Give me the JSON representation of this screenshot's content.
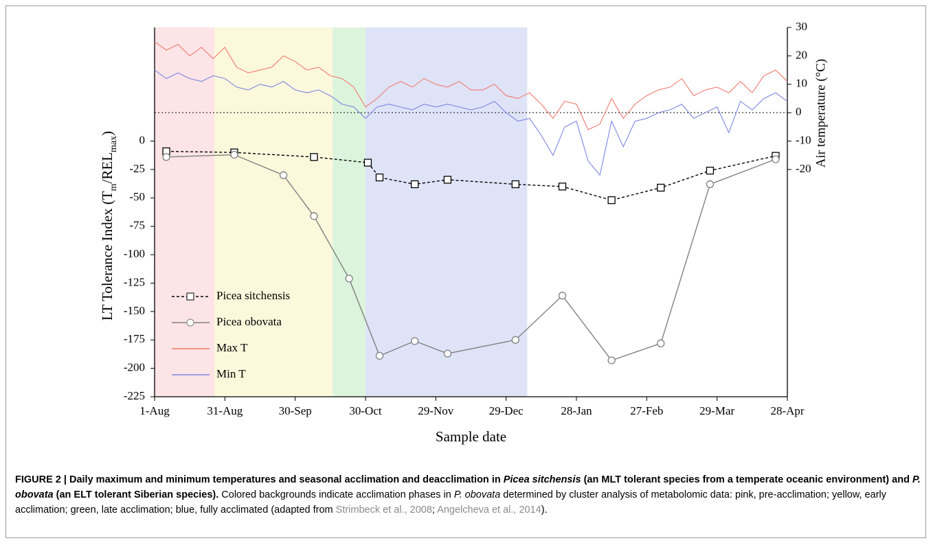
{
  "chart_data": {
    "type": "line",
    "xlabel": "Sample date",
    "ylabel_parts": [
      {
        "text": "LT Tolerance Index (T",
        "sub": false
      },
      {
        "text": "m",
        "sub": true
      },
      {
        "text": "/REL",
        "sub": false
      },
      {
        "text": "max",
        "sub": true
      },
      {
        "text": ")",
        "sub": false
      }
    ],
    "y2label": "Air temperature (°C)",
    "xlim": [
      0,
      270
    ],
    "xticks": [
      {
        "value": 0,
        "label": "1-Aug"
      },
      {
        "value": 30,
        "label": "31-Aug"
      },
      {
        "value": 60,
        "label": "30-Sep"
      },
      {
        "value": 90,
        "label": "30-Oct"
      },
      {
        "value": 120,
        "label": "29-Nov"
      },
      {
        "value": 150,
        "label": "29-Dec"
      },
      {
        "value": 180,
        "label": "28-Jan"
      },
      {
        "value": 210,
        "label": "27-Feb"
      },
      {
        "value": 240,
        "label": "29-Mar"
      },
      {
        "value": 270,
        "label": "28-Apr"
      }
    ],
    "ylim": [
      -225,
      100
    ],
    "yticks": [
      0,
      -25,
      -50,
      -75,
      -100,
      -125,
      -150,
      -175,
      -200,
      -225
    ],
    "y2lim": [
      -100,
      30
    ],
    "y2ticks": [
      30,
      20,
      10,
      0,
      -10,
      -20
    ],
    "y2_reference": 0,
    "legend": "lower left",
    "bands": [
      {
        "from": 0,
        "to": 25.5,
        "color": "#fde4e7"
      },
      {
        "from": 25.5,
        "to": 76,
        "color": "#fbf8dc"
      },
      {
        "from": 76,
        "to": 90,
        "color": "#dcf4dc"
      },
      {
        "from": 90,
        "to": 159,
        "color": "#dfe3f7"
      }
    ],
    "series": [
      {
        "name": "Picea sitchensis",
        "color": "#000000",
        "dash": true,
        "marker": "square",
        "axis": "y",
        "x": [
          5,
          34,
          68,
          91,
          96,
          111,
          125,
          154,
          174,
          195,
          216,
          237,
          265
        ],
        "values": [
          -9,
          -10,
          -14,
          -19,
          -32,
          -38,
          -34,
          -38,
          -40,
          -52,
          -41,
          -26,
          -13
        ]
      },
      {
        "name": "Picea obovata",
        "color": "#808080",
        "dash": false,
        "marker": "circle",
        "axis": "y",
        "x": [
          5,
          34,
          55,
          68,
          83,
          96,
          111,
          125,
          154,
          174,
          195,
          216,
          237,
          265
        ],
        "values": [
          -14,
          -12,
          -30,
          -66,
          -121,
          -189,
          -176,
          -187,
          -175,
          -136,
          -193,
          -178,
          -38,
          -16
        ]
      },
      {
        "name": "Max T",
        "color": "#f07a6e",
        "dash": false,
        "marker": "none",
        "axis": "y2",
        "x": [
          0,
          5,
          10,
          15,
          20,
          25,
          30,
          35,
          40,
          45,
          50,
          55,
          60,
          65,
          70,
          75,
          80,
          85,
          90,
          95,
          100,
          105,
          110,
          115,
          120,
          125,
          130,
          135,
          140,
          145,
          150,
          155,
          160,
          165,
          170,
          175,
          180,
          185,
          190,
          195,
          200,
          205,
          210,
          215,
          220,
          225,
          230,
          235,
          240,
          245,
          250,
          255,
          260,
          265,
          270
        ],
        "values": [
          25,
          22,
          24,
          20,
          23,
          19,
          23,
          16,
          14,
          15,
          16,
          20,
          18,
          15,
          16,
          13,
          12,
          9,
          2,
          5,
          9,
          11,
          9,
          12,
          10,
          9,
          11,
          8,
          8,
          10,
          6,
          5,
          7,
          3,
          -2,
          4,
          3,
          -6,
          -4,
          5,
          -2,
          3,
          6,
          8,
          9,
          12,
          6,
          8,
          9,
          7,
          11,
          7,
          13,
          15,
          11
        ]
      },
      {
        "name": "Min T",
        "color": "#7b86e0",
        "dash": false,
        "marker": "none",
        "axis": "y2",
        "x": [
          0,
          5,
          10,
          15,
          20,
          25,
          30,
          35,
          40,
          45,
          50,
          55,
          60,
          65,
          70,
          75,
          80,
          85,
          90,
          95,
          100,
          105,
          110,
          115,
          120,
          125,
          130,
          135,
          140,
          145,
          150,
          155,
          160,
          165,
          170,
          175,
          180,
          185,
          190,
          195,
          200,
          205,
          210,
          215,
          220,
          225,
          230,
          235,
          240,
          245,
          250,
          255,
          260,
          265,
          270
        ],
        "values": [
          15,
          12,
          14,
          12,
          11,
          13,
          12,
          9,
          8,
          10,
          9,
          11,
          8,
          7,
          8,
          6,
          3,
          2,
          -2,
          2,
          3,
          2,
          1,
          3,
          2,
          3,
          2,
          1,
          2,
          4,
          0,
          -3,
          -2,
          -8,
          -15,
          -5,
          -3,
          -17,
          -22,
          -3,
          -12,
          -3,
          -2,
          0,
          1,
          3,
          -2,
          0,
          2,
          -7,
          4,
          1,
          5,
          7,
          4
        ]
      }
    ]
  },
  "caption": [
    {
      "text": "FIGURE 2 | Daily maximum and minimum temperatures and seasonal acclimation and deacclimation in ",
      "bold": true,
      "italic": false,
      "color": "#000000"
    },
    {
      "text": "Picea sitchensis",
      "bold": true,
      "italic": true,
      "color": "#000000"
    },
    {
      "text": " (an MLT tolerant species from a temperate oceanic environment) and ",
      "bold": true,
      "italic": false,
      "color": "#000000"
    },
    {
      "text": "P. obovata",
      "bold": true,
      "italic": true,
      "color": "#000000"
    },
    {
      "text": " (an ELT tolerant Siberian species).",
      "bold": true,
      "italic": false,
      "color": "#000000"
    },
    {
      "text": " Colored backgrounds indicate acclimation phases in ",
      "bold": false,
      "italic": false,
      "color": "#000000"
    },
    {
      "text": "P. obovata",
      "bold": false,
      "italic": true,
      "color": "#000000"
    },
    {
      "text": " determined by cluster analysis of metabolomic data: pink, pre-acclimation; yellow, early acclimation; green, late acclimation; blue, fully acclimated (adapted from ",
      "bold": false,
      "italic": false,
      "color": "#000000"
    },
    {
      "text": "Strimbeck et al., 2008",
      "bold": false,
      "italic": false,
      "color": "#8a8a8a"
    },
    {
      "text": "; ",
      "bold": false,
      "italic": false,
      "color": "#000000"
    },
    {
      "text": "Angelcheva et al., 2014",
      "bold": false,
      "italic": false,
      "color": "#8a8a8a"
    },
    {
      "text": ").",
      "bold": false,
      "italic": false,
      "color": "#000000"
    }
  ]
}
